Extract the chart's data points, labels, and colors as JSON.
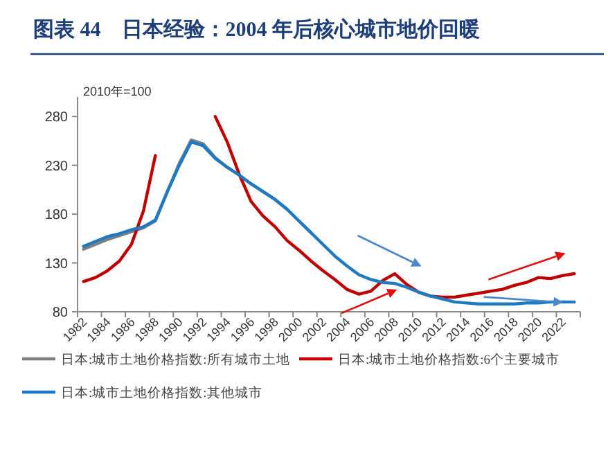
{
  "chart_data": {
    "type": "line",
    "title": "图表 44　日本经验：2004 年后核心城市地价回暖",
    "annotations": [
      "2010年=100"
    ],
    "categories": [
      "1982",
      null,
      "1984",
      null,
      "1986",
      null,
      "1988",
      null,
      "1990",
      null,
      "1992",
      null,
      "1994",
      null,
      "1996",
      null,
      "1998",
      null,
      "2000",
      null,
      "2002",
      null,
      "2004",
      null,
      "2006",
      null,
      "2008",
      null,
      "2010",
      null,
      "2012",
      null,
      "2014",
      null,
      "2016",
      null,
      "2018",
      null,
      "2020",
      null,
      "2022",
      null
    ],
    "ylim": [
      80,
      300
    ],
    "yticks": [
      80,
      130,
      180,
      230,
      280
    ],
    "legend": "bottom",
    "series": [
      {
        "name": "日本:城市土地价格指数:所有城市土地",
        "color": "#7f7f7f",
        "values": [
          144,
          149,
          154,
          158,
          162,
          166,
          173,
          203,
          232,
          256,
          252,
          238,
          228,
          220,
          211,
          203,
          195,
          185,
          173,
          161,
          null,
          null,
          null,
          null,
          null,
          null,
          null,
          null,
          null,
          null,
          null,
          null,
          null,
          null,
          null,
          null,
          null,
          null,
          null,
          null,
          null,
          null
        ]
      },
      {
        "name": "日本:城市土地价格指数:6个主要城市",
        "color": "#c00000",
        "values": [
          111,
          115,
          122,
          132,
          149,
          183,
          240,
          null,
          null,
          null,
          null,
          280,
          254,
          221,
          193,
          178,
          167,
          153,
          143,
          132,
          122,
          113,
          103,
          98,
          101,
          112,
          119,
          108,
          100,
          96,
          95,
          95,
          97,
          99,
          101,
          103,
          107,
          110,
          115,
          114,
          117,
          119
        ]
      },
      {
        "name": "日本:城市土地价格指数:其他城市",
        "color": "#1f7ac4",
        "values": [
          147,
          152,
          157,
          160,
          164,
          167,
          174,
          203,
          230,
          254,
          250,
          237,
          228,
          220,
          211,
          203,
          195,
          185,
          173,
          161,
          149,
          137,
          127,
          118,
          113,
          110,
          109,
          105,
          100,
          96,
          93,
          90,
          89,
          88,
          88,
          88,
          88,
          89,
          89,
          90,
          90,
          90
        ]
      }
    ]
  }
}
